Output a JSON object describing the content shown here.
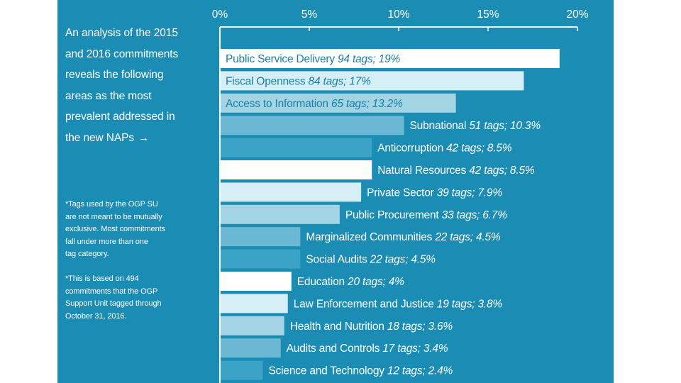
{
  "intro": {
    "lines": [
      "An analysis of the 2015",
      "and 2016 commitments",
      "reveals the following",
      "areas as the most",
      "prevalent addressed in",
      "the new NAPs"
    ],
    "arrow": "→"
  },
  "notes": {
    "note1": [
      "*Tags used by the OGP SU",
      "are not meant to be mutually",
      "exclusive. Most commitments",
      "fall under more than one",
      "tag category."
    ],
    "note2": [
      "*This is based on 494",
      "commitments that the OGP",
      "Support Unit tagged through",
      "October 31, 2016."
    ]
  },
  "colors": {
    "panel": "#1b8db4",
    "bar_shades": [
      "#ffffff",
      "#d6eef5",
      "#a3d4e4",
      "#6ab8d3",
      "#3aa3c6"
    ],
    "text_dark": "#1b7fa8",
    "text_light": "#ffffff"
  },
  "chart_data": {
    "type": "bar",
    "orientation": "horizontal",
    "title": "",
    "xlabel": "",
    "ylabel": "",
    "xlim": [
      0,
      20
    ],
    "x_ticks": [
      "0%",
      "5%",
      "10%",
      "15%",
      "20%"
    ],
    "categories": [
      "Public Service Delivery",
      "Fiscal Openness",
      "Access to Information",
      "Subnational",
      "Anticorruption",
      "Natural Resources",
      "Private Sector",
      "Public Procurement",
      "Marginalized Communities",
      "Social Audits",
      "Education",
      "Law Enforcement and Justice",
      "Health and Nutrition",
      "Audits and Controls",
      "Science and Technology"
    ],
    "values": [
      19,
      17,
      13.2,
      10.3,
      8.5,
      8.5,
      7.9,
      6.7,
      4.5,
      4.5,
      4,
      3.8,
      3.6,
      3.4,
      2.4
    ],
    "value_labels": [
      "94 tags; 19%",
      "84 tags; 17%",
      "65 tags; 13.2%",
      "51 tags; 10.3%",
      "42 tags; 8.5%",
      "42 tags; 8.5%",
      "39 tags; 7.9%",
      "33 tags; 6.7%",
      "22 tags; 4.5%",
      "22 tags; 4.5%",
      "20 tags; 4%",
      "19 tags; 3.8%",
      "18 tags; 3.6%",
      "17 tags; 3.4%",
      "12 tags; 2.4%"
    ],
    "shade_index": [
      0,
      1,
      2,
      3,
      4,
      0,
      1,
      2,
      3,
      4,
      0,
      1,
      2,
      3,
      4
    ],
    "label_inside_bar": [
      true,
      true,
      true,
      false,
      false,
      false,
      false,
      false,
      false,
      false,
      false,
      false,
      false,
      false,
      false
    ]
  }
}
